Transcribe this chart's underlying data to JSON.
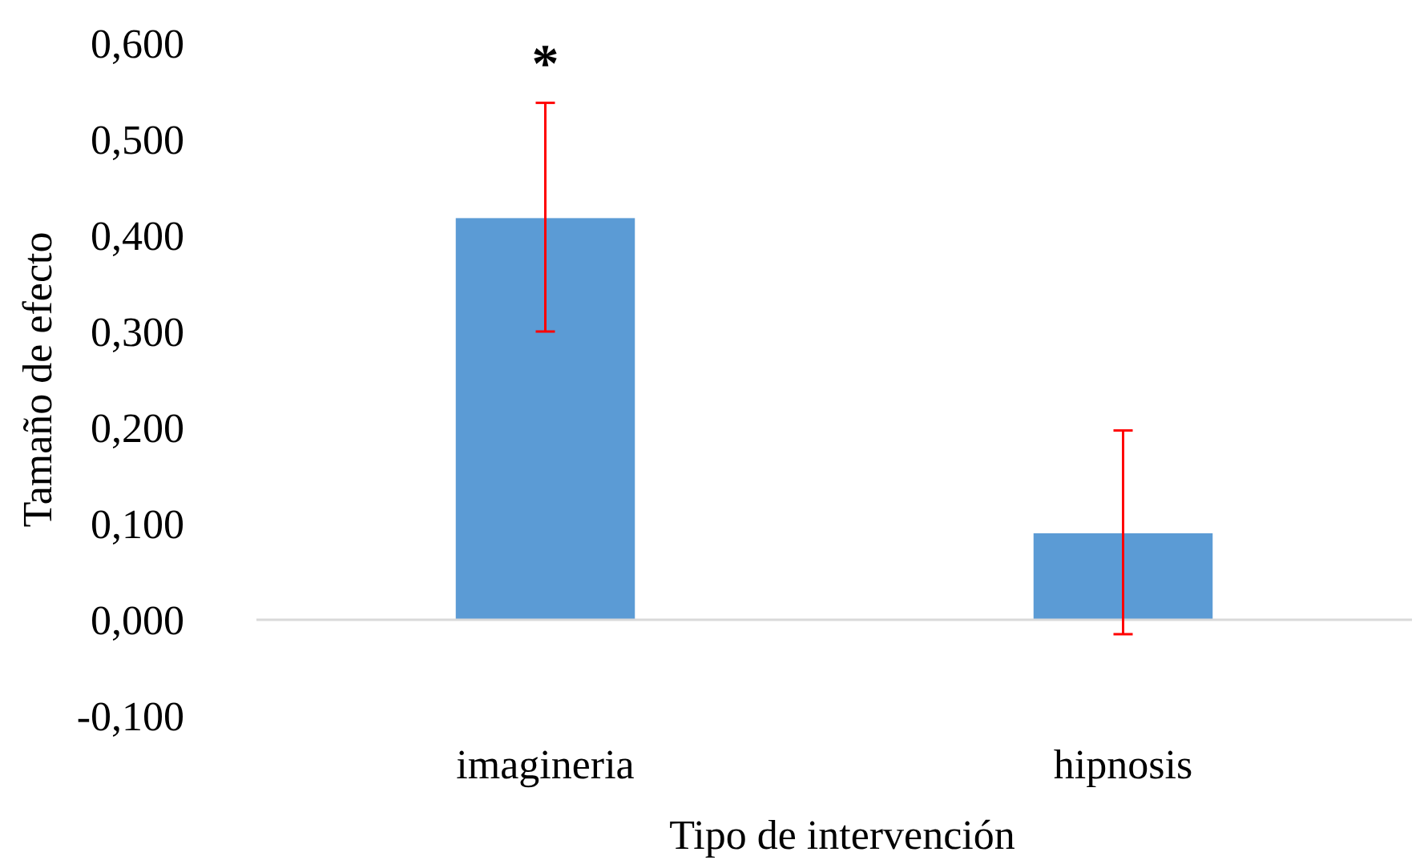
{
  "chart_data": {
    "type": "bar",
    "xlabel": "Tipo de intervención",
    "ylabel": "Tamaño de efecto",
    "categories": [
      "imagineria",
      "hipnosis"
    ],
    "values": [
      0.418,
      0.09
    ],
    "errors": [
      [
        0.3,
        0.538
      ],
      [
        -0.015,
        0.197
      ]
    ],
    "color": "#5b9bd5",
    "ylim": [
      -0.1,
      0.6
    ],
    "yticks": [
      {
        "value": -0.1,
        "label": "-0,100"
      },
      {
        "value": 0,
        "label": "0,000"
      },
      {
        "value": 0.1,
        "label": "0,100"
      },
      {
        "value": 0.2,
        "label": "0,200"
      },
      {
        "value": 0.3,
        "label": "0,300"
      },
      {
        "value": 0.4,
        "label": "0,400"
      },
      {
        "value": 0.5,
        "label": "0,500"
      },
      {
        "value": 0.6,
        "label": "0,600"
      }
    ],
    "annotations": [
      "*"
    ]
  }
}
